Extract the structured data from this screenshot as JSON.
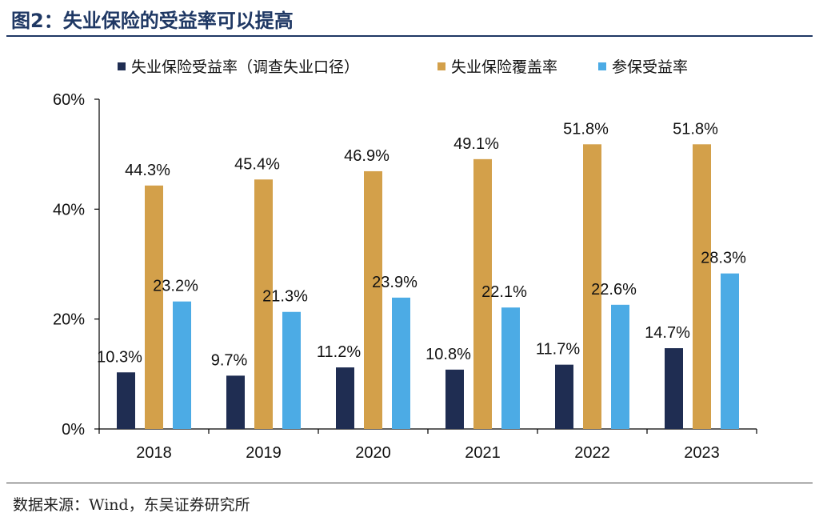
{
  "header": {
    "title": "图2：失业保险的受益率可以提高"
  },
  "footer": {
    "source": "数据来源：Wind，东吴证券研究所"
  },
  "colors": {
    "series1": "#1f2d52",
    "series2": "#d3a04a",
    "series3": "#4cabe5",
    "title": "#1f3864"
  },
  "chart_data": {
    "type": "bar",
    "title": "",
    "xlabel": "",
    "ylabel": "",
    "categories": [
      "2018",
      "2019",
      "2020",
      "2021",
      "2022",
      "2023"
    ],
    "ylim": [
      0,
      60
    ],
    "yticks": [
      "0%",
      "20%",
      "40%",
      "60%"
    ],
    "grid": false,
    "legend_position": "top",
    "series": [
      {
        "name": "失业保险受益率（调查失业口径）",
        "values": [
          10.3,
          9.7,
          11.2,
          10.8,
          11.7,
          14.7
        ],
        "labels": [
          "10.3%",
          "9.7%",
          "11.2%",
          "10.8%",
          "11.7%",
          "14.7%"
        ]
      },
      {
        "name": "失业保险覆盖率",
        "values": [
          44.3,
          45.4,
          46.9,
          49.1,
          51.8,
          51.8
        ],
        "labels": [
          "44.3%",
          "45.4%",
          "46.9%",
          "49.1%",
          "51.8%",
          "51.8%"
        ]
      },
      {
        "name": "参保受益率",
        "values": [
          23.2,
          21.3,
          23.9,
          22.1,
          22.6,
          28.3
        ],
        "labels": [
          "23.2%",
          "21.3%",
          "23.9%",
          "22.1%",
          "22.6%",
          "28.3%"
        ]
      }
    ]
  }
}
